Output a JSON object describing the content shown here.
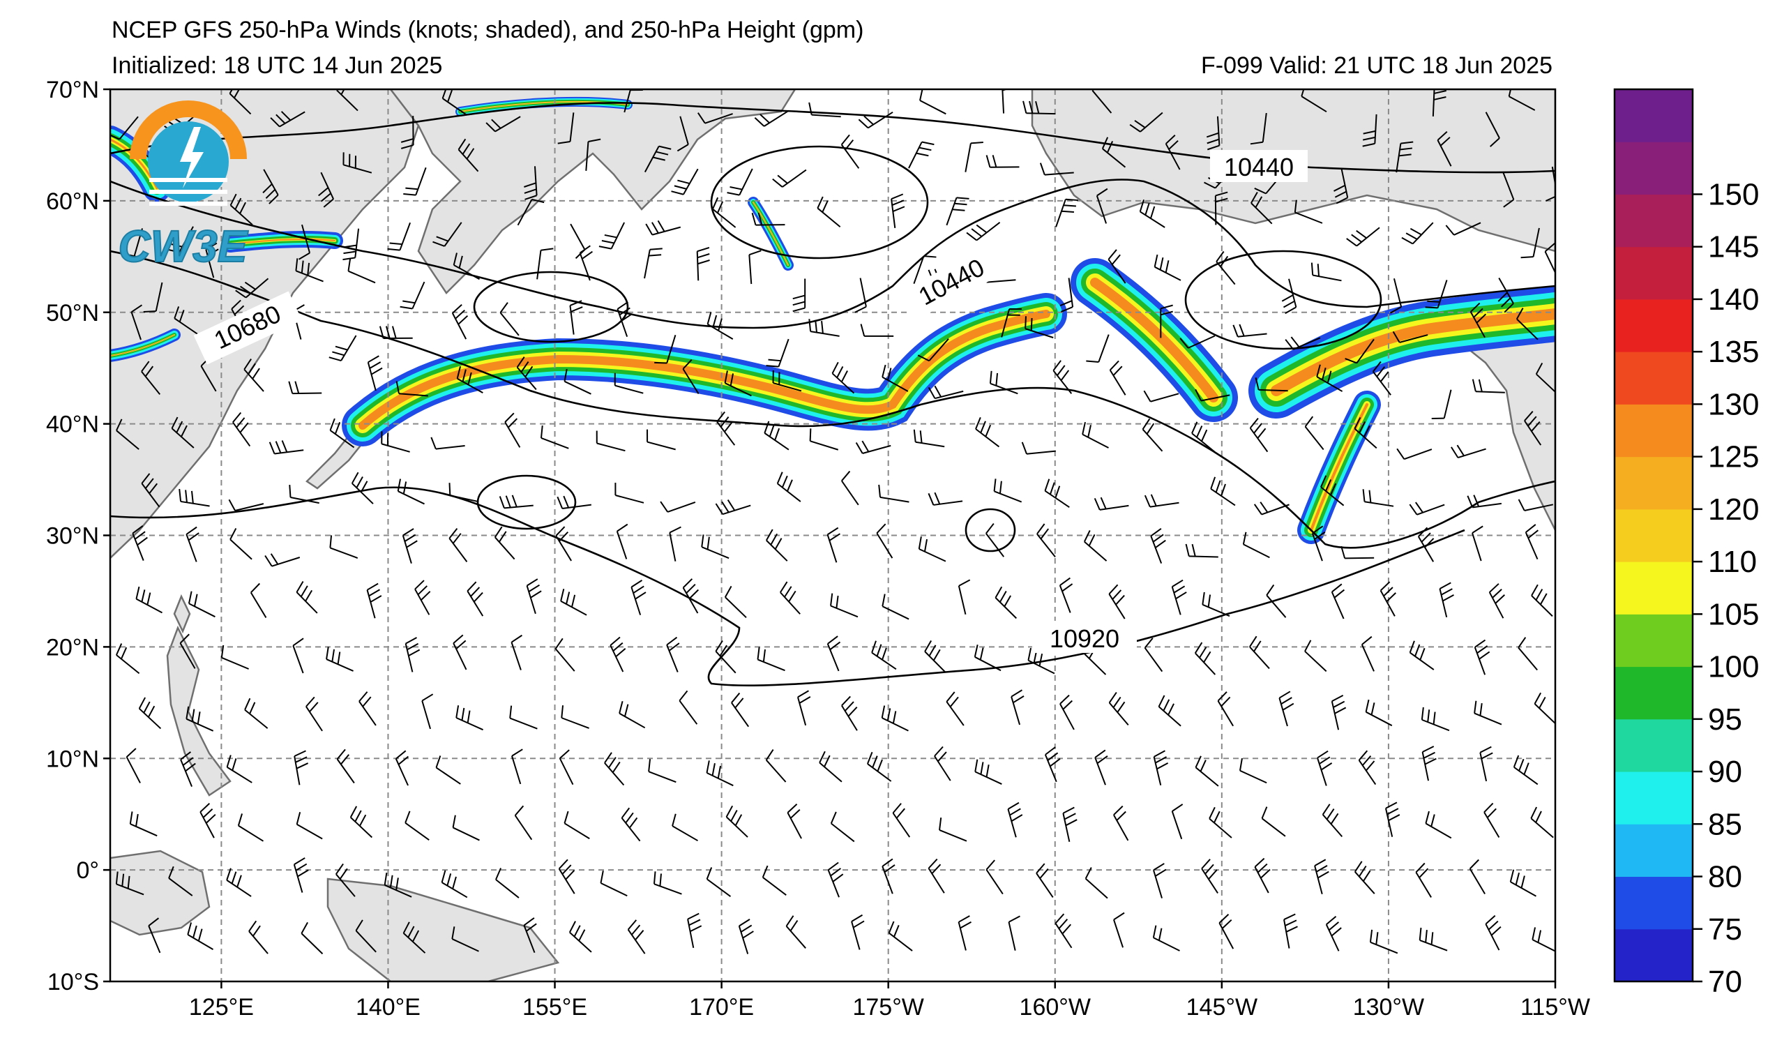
{
  "header": {
    "title": "NCEP GFS 250-hPa Winds (knots; shaded), and 250-hPa Height (gpm)",
    "initialized": "Initialized: 18 UTC 14 Jun 2025",
    "valid": "F-099  Valid: 21 UTC 18 Jun 2025"
  },
  "logo": {
    "text": "CW3E",
    "colors": [
      "#f7941d",
      "#29a9d1",
      "#1d7ea3"
    ]
  },
  "map": {
    "lat_labels": [
      "70°N",
      "60°N",
      "50°N",
      "40°N",
      "30°N",
      "20°N",
      "10°N",
      "0°",
      "10°S"
    ],
    "lon_labels": [
      "125°E",
      "140°E",
      "155°E",
      "170°E",
      "175°W",
      "160°W",
      "145°W",
      "130°W",
      "115°W"
    ],
    "lat_range": [
      -10,
      70
    ],
    "lon_range_east": [
      115,
      245
    ],
    "grid": true,
    "land_color": "#e3e3e3",
    "coast_color": "#6f6f6f",
    "contour_labels": [
      "10440",
      "10440",
      "10680",
      "10920"
    ]
  },
  "colorbar": {
    "labels": [
      "70",
      "75",
      "80",
      "85",
      "90",
      "95",
      "100",
      "105",
      "110",
      "120",
      "125",
      "130",
      "135",
      "140",
      "145",
      "150"
    ],
    "colors": [
      "#2323c9",
      "#1f4be6",
      "#1fb8f5",
      "#1ff0ee",
      "#1fd8a0",
      "#1fb82a",
      "#6fcd1f",
      "#f6f61f",
      "#f5cd1f",
      "#f5ae1f",
      "#f58a1f",
      "#ef4a1f",
      "#e8231f",
      "#c41f3c",
      "#a81f5a",
      "#8a1f7a",
      "#6f1f8c"
    ]
  }
}
